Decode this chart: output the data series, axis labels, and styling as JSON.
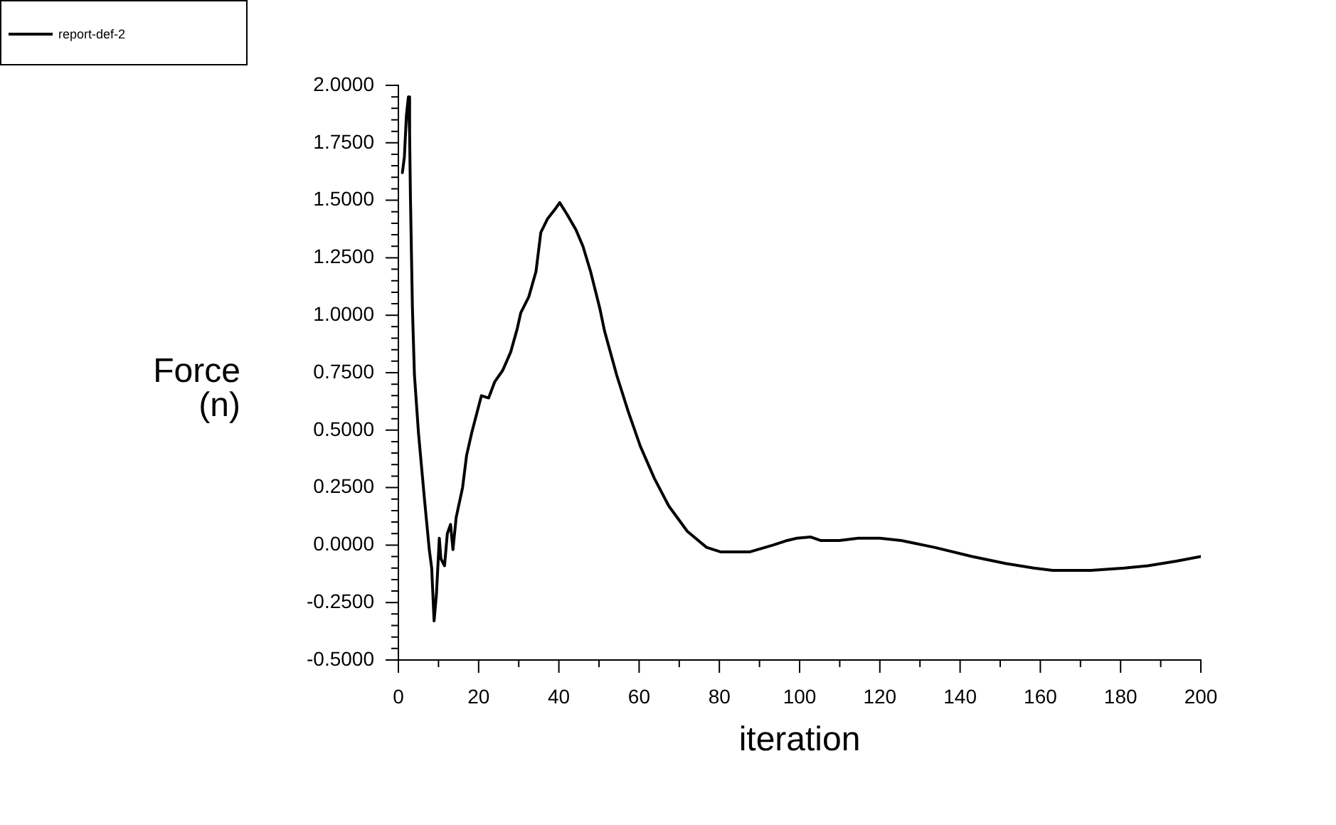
{
  "chart_data": {
    "type": "line",
    "xlabel": "iteration",
    "ylabel": "Force\n(n)",
    "legend": "top left",
    "grid": false,
    "xlim": [
      0,
      200
    ],
    "xticks": [
      0,
      {
        "value": 10,
        "label": null
      },
      20,
      {
        "value": 30,
        "label": null
      },
      40,
      {
        "value": 50,
        "label": null
      },
      60,
      {
        "value": 70,
        "label": null
      },
      80,
      {
        "value": 90,
        "label": null
      },
      100,
      {
        "value": 110,
        "label": null
      },
      120,
      {
        "value": 130,
        "label": null
      },
      140,
      {
        "value": 150,
        "label": null
      },
      160,
      {
        "value": 170,
        "label": null
      },
      180,
      {
        "value": 190,
        "label": null
      },
      200
    ],
    "ylim": [
      -0.5,
      2
    ],
    "yticks": [
      {
        "value": -0.5,
        "label": "-0.5000"
      },
      {
        "value": -0.45,
        "label": null
      },
      {
        "value": -0.4,
        "label": null
      },
      {
        "value": -0.35,
        "label": null
      },
      {
        "value": -0.3,
        "label": null
      },
      {
        "value": -0.25,
        "label": "-0.2500"
      },
      {
        "value": -0.2,
        "label": null
      },
      {
        "value": -0.15,
        "label": null
      },
      {
        "value": -0.1,
        "label": null
      },
      {
        "value": -0.05,
        "label": null
      },
      {
        "value": 0,
        "label": "0.0000"
      },
      {
        "value": 0.05,
        "label": null
      },
      {
        "value": 0.1,
        "label": null
      },
      {
        "value": 0.15,
        "label": null
      },
      {
        "value": 0.2,
        "label": null
      },
      {
        "value": 0.25,
        "label": "0.2500"
      },
      {
        "value": 0.3,
        "label": null
      },
      {
        "value": 0.35,
        "label": null
      },
      {
        "value": 0.4,
        "label": null
      },
      {
        "value": 0.45,
        "label": null
      },
      {
        "value": 0.5,
        "label": "0.5000"
      },
      {
        "value": 0.55,
        "label": null
      },
      {
        "value": 0.6,
        "label": null
      },
      {
        "value": 0.65,
        "label": null
      },
      {
        "value": 0.7,
        "label": null
      },
      {
        "value": 0.75,
        "label": "0.7500"
      },
      {
        "value": 0.8,
        "label": null
      },
      {
        "value": 0.85,
        "label": null
      },
      {
        "value": 0.9,
        "label": null
      },
      {
        "value": 0.95,
        "label": null
      },
      {
        "value": 1,
        "label": "1.0000"
      },
      {
        "value": 1.05,
        "label": null
      },
      {
        "value": 1.1,
        "label": null
      },
      {
        "value": 1.15,
        "label": null
      },
      {
        "value": 1.2,
        "label": null
      },
      {
        "value": 1.25,
        "label": "1.2500"
      },
      {
        "value": 1.3,
        "label": null
      },
      {
        "value": 1.35,
        "label": null
      },
      {
        "value": 1.4,
        "label": null
      },
      {
        "value": 1.45,
        "label": null
      },
      {
        "value": 1.5,
        "label": "1.5000"
      },
      {
        "value": 1.55,
        "label": null
      },
      {
        "value": 1.6,
        "label": null
      },
      {
        "value": 1.65,
        "label": null
      },
      {
        "value": 1.7,
        "label": null
      },
      {
        "value": 1.75,
        "label": "1.7500"
      },
      {
        "value": 1.8,
        "label": null
      },
      {
        "value": 1.85,
        "label": null
      },
      {
        "value": 1.9,
        "label": null
      },
      {
        "value": 1.95,
        "label": null
      },
      {
        "value": 2,
        "label": "2.0000"
      }
    ],
    "x": [
      1,
      1.5,
      2,
      2.5,
      2.8,
      3,
      3.5,
      4,
      5,
      6.5,
      7.7,
      8.3,
      8.9,
      9.5,
      10.2,
      10.6,
      11.5,
      12.2,
      13,
      13.6,
      14.4,
      16,
      17,
      18.3,
      20.7,
      22.5,
      24,
      26,
      28,
      29.6,
      30.5,
      32.5,
      34.3,
      35.5,
      37.2,
      39,
      40.2,
      42,
      44.3,
      46,
      47.9,
      50.2,
      51.4,
      54.4,
      57.3,
      60.3,
      63.8,
      67.4,
      72,
      76.8,
      80.4,
      87.5,
      93.4,
      96.9,
      99.3,
      102.8,
      105.2,
      109.9,
      114.6,
      120,
      125.3,
      133.6,
      143,
      151.3,
      158.4,
      163.1,
      172.6,
      180.9,
      186.8,
      193.9,
      200
    ],
    "series": [
      {
        "name": "report-def-2",
        "color": "#000000",
        "values": [
          1.62,
          1.69,
          1.87,
          1.95,
          1.79,
          1.52,
          1.03,
          0.74,
          0.49,
          0.2,
          -0.02,
          -0.1,
          -0.33,
          -0.21,
          0.03,
          -0.06,
          -0.09,
          0.05,
          0.09,
          -0.02,
          0.12,
          0.25,
          0.39,
          0.49,
          0.65,
          0.64,
          0.71,
          0.76,
          0.84,
          0.94,
          1.01,
          1.08,
          1.19,
          1.36,
          1.42,
          1.46,
          1.49,
          1.44,
          1.37,
          1.3,
          1.19,
          1.03,
          0.93,
          0.74,
          0.58,
          0.43,
          0.29,
          0.17,
          0.06,
          -0.01,
          -0.03,
          -0.03,
          0,
          0.02,
          0.03,
          0.035,
          0.02,
          0.02,
          0.03,
          0.03,
          0.02,
          -0.01,
          -0.05,
          -0.08,
          -0.1,
          -0.11,
          -0.11,
          -0.1,
          -0.09,
          -0.07,
          -0.05
        ]
      }
    ]
  }
}
